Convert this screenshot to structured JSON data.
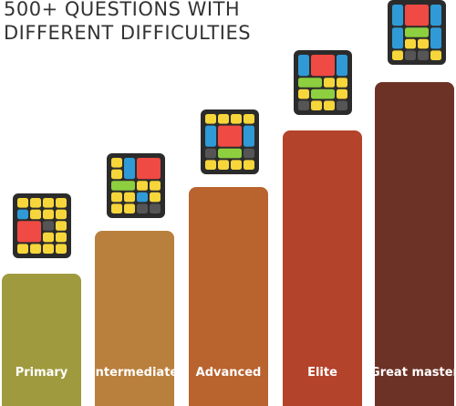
{
  "header": {
    "title_lines": [
      "500+ QUESTIONS WITH",
      "DIFFERENT DIFFICULTIES"
    ]
  },
  "levels": [
    {
      "label": "Primary"
    },
    {
      "label": "Intermediate"
    },
    {
      "label": "Advanced"
    },
    {
      "label": "Elite"
    },
    {
      "label": "Great master"
    }
  ]
}
